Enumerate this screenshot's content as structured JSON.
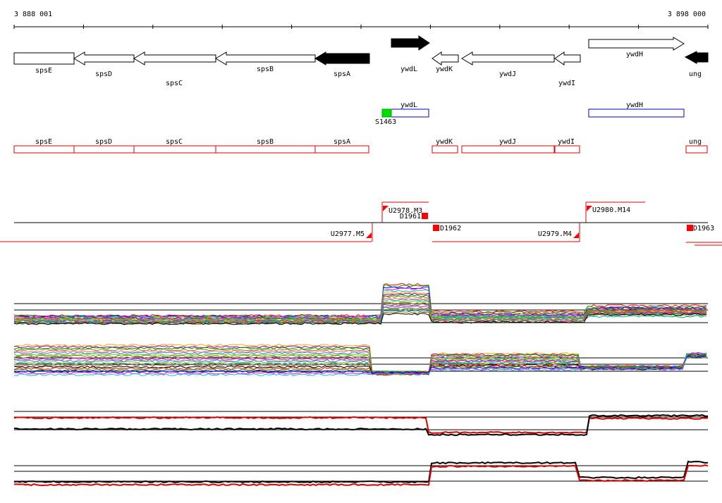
{
  "coords": {
    "start": "3 888 001",
    "end": "3 898 000"
  },
  "colors": {
    "outline_red": "#dd0000",
    "outline_blue": "#0000cc",
    "marker_red": "#ff0000",
    "marker_green": "#00dd00",
    "black": "#000000"
  },
  "genes": [
    {
      "name": "spsE",
      "filled": false,
      "dir": "right"
    },
    {
      "name": "spsD",
      "filled": false,
      "dir": "left"
    },
    {
      "name": "spsC",
      "filled": false,
      "dir": "left"
    },
    {
      "name": "spsB",
      "filled": false,
      "dir": "left"
    },
    {
      "name": "spsA",
      "filled": true,
      "dir": "left"
    },
    {
      "name": "ywdL",
      "filled": true,
      "dir": "right"
    },
    {
      "name": "ywdK",
      "filled": false,
      "dir": "left"
    },
    {
      "name": "ywdJ",
      "filled": false,
      "dir": "left"
    },
    {
      "name": "ywdI",
      "filled": false,
      "dir": "left"
    },
    {
      "name": "ywdH",
      "filled": false,
      "dir": "right"
    },
    {
      "name": "ung",
      "filled": true,
      "dir": "left"
    }
  ],
  "blue_boxes": [
    {
      "name": "ywdL"
    },
    {
      "name": "ywdH"
    }
  ],
  "green_marker": {
    "label": "S1463"
  },
  "red_boxes": [
    {
      "name": "spsE"
    },
    {
      "name": "spsD"
    },
    {
      "name": "spsC"
    },
    {
      "name": "spsB"
    },
    {
      "name": "spsA"
    },
    {
      "name": "ywdK"
    },
    {
      "name": "ywdJ"
    },
    {
      "name": "ywdI"
    },
    {
      "name": "ung"
    }
  ],
  "regulatory_markers": [
    {
      "label": "U2977.M5"
    },
    {
      "label": "U2978.M3"
    },
    {
      "label": "D1961"
    },
    {
      "label": "D1962"
    },
    {
      "label": "U2979.M4"
    },
    {
      "label": "U2980.M14"
    },
    {
      "label": "D1963"
    }
  ]
}
